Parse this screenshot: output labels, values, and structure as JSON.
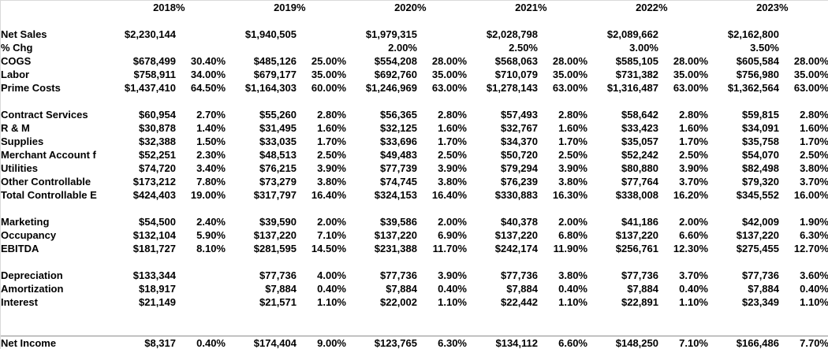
{
  "sheet": {
    "pct_header_symbol": "%",
    "years": [
      "2018",
      "2019",
      "2020",
      "2021",
      "2022",
      "2023"
    ],
    "rows": [
      {
        "spacer": true
      },
      {
        "label": "Net Sales",
        "cells": [
          [
            "$2,230,144",
            ""
          ],
          [
            "$1,940,505",
            ""
          ],
          [
            "$1,979,315",
            ""
          ],
          [
            "$2,028,798",
            ""
          ],
          [
            "$2,089,662",
            ""
          ],
          [
            "$2,162,800",
            ""
          ]
        ]
      },
      {
        "label": "% Chg",
        "cells": [
          [
            "",
            ""
          ],
          [
            "",
            ""
          ],
          [
            "2.00%",
            ""
          ],
          [
            "2.50%",
            ""
          ],
          [
            "3.00%",
            ""
          ],
          [
            "3.50%",
            ""
          ]
        ]
      },
      {
        "label": "COGS",
        "cells": [
          [
            "$678,499",
            "30.40%"
          ],
          [
            "$485,126",
            "25.00%"
          ],
          [
            "$554,208",
            "28.00%"
          ],
          [
            "$568,063",
            "28.00%"
          ],
          [
            "$585,105",
            "28.00%"
          ],
          [
            "$605,584",
            "28.00%"
          ]
        ]
      },
      {
        "label": "Labor",
        "cells": [
          [
            "$758,911",
            "34.00%"
          ],
          [
            "$679,177",
            "35.00%"
          ],
          [
            "$692,760",
            "35.00%"
          ],
          [
            "$710,079",
            "35.00%"
          ],
          [
            "$731,382",
            "35.00%"
          ],
          [
            "$756,980",
            "35.00%"
          ]
        ]
      },
      {
        "label": "Prime Costs",
        "cells": [
          [
            "$1,437,410",
            "64.50%"
          ],
          [
            "$1,164,303",
            "60.00%"
          ],
          [
            "$1,246,969",
            "63.00%"
          ],
          [
            "$1,278,143",
            "63.00%"
          ],
          [
            "$1,316,487",
            "63.00%"
          ],
          [
            "$1,362,564",
            "63.00%"
          ]
        ]
      },
      {
        "spacer": true
      },
      {
        "label": "Contract Services",
        "cells": [
          [
            "$60,954",
            "2.70%"
          ],
          [
            "$55,260",
            "2.80%"
          ],
          [
            "$56,365",
            "2.80%"
          ],
          [
            "$57,493",
            "2.80%"
          ],
          [
            "$58,642",
            "2.80%"
          ],
          [
            "$59,815",
            "2.80%"
          ]
        ]
      },
      {
        "label": "R & M",
        "cells": [
          [
            "$30,878",
            "1.40%"
          ],
          [
            "$31,495",
            "1.60%"
          ],
          [
            "$32,125",
            "1.60%"
          ],
          [
            "$32,767",
            "1.60%"
          ],
          [
            "$33,423",
            "1.60%"
          ],
          [
            "$34,091",
            "1.60%"
          ]
        ]
      },
      {
        "label": "Supplies",
        "cells": [
          [
            "$32,388",
            "1.50%"
          ],
          [
            "$33,035",
            "1.70%"
          ],
          [
            "$33,696",
            "1.70%"
          ],
          [
            "$34,370",
            "1.70%"
          ],
          [
            "$35,057",
            "1.70%"
          ],
          [
            "$35,758",
            "1.70%"
          ]
        ]
      },
      {
        "label": "Merchant Account f",
        "cells": [
          [
            "$52,251",
            "2.30%"
          ],
          [
            "$48,513",
            "2.50%"
          ],
          [
            "$49,483",
            "2.50%"
          ],
          [
            "$50,720",
            "2.50%"
          ],
          [
            "$52,242",
            "2.50%"
          ],
          [
            "$54,070",
            "2.50%"
          ]
        ]
      },
      {
        "label": "Utilities",
        "cells": [
          [
            "$74,720",
            "3.40%"
          ],
          [
            "$76,215",
            "3.90%"
          ],
          [
            "$77,739",
            "3.90%"
          ],
          [
            "$79,294",
            "3.90%"
          ],
          [
            "$80,880",
            "3.90%"
          ],
          [
            "$82,498",
            "3.80%"
          ]
        ]
      },
      {
        "label": "Other Controllable",
        "cells": [
          [
            "$173,212",
            "7.80%"
          ],
          [
            "$73,279",
            "3.80%"
          ],
          [
            "$74,745",
            "3.80%"
          ],
          [
            "$76,239",
            "3.80%"
          ],
          [
            "$77,764",
            "3.70%"
          ],
          [
            "$79,320",
            "3.70%"
          ]
        ]
      },
      {
        "label": "Total Controllable E",
        "cells": [
          [
            "$424,403",
            "19.00%"
          ],
          [
            "$317,797",
            "16.40%"
          ],
          [
            "$324,153",
            "16.40%"
          ],
          [
            "$330,883",
            "16.30%"
          ],
          [
            "$338,008",
            "16.20%"
          ],
          [
            "$345,552",
            "16.00%"
          ]
        ]
      },
      {
        "spacer": true
      },
      {
        "label": "Marketing",
        "cells": [
          [
            "$54,500",
            "2.40%"
          ],
          [
            "$39,590",
            "2.00%"
          ],
          [
            "$39,586",
            "2.00%"
          ],
          [
            "$40,378",
            "2.00%"
          ],
          [
            "$41,186",
            "2.00%"
          ],
          [
            "$42,009",
            "1.90%"
          ]
        ]
      },
      {
        "label": "Occupancy",
        "cells": [
          [
            "$132,104",
            "5.90%"
          ],
          [
            "$137,220",
            "7.10%"
          ],
          [
            "$137,220",
            "6.90%"
          ],
          [
            "$137,220",
            "6.80%"
          ],
          [
            "$137,220",
            "6.60%"
          ],
          [
            "$137,220",
            "6.30%"
          ]
        ]
      },
      {
        "label": "EBITDA",
        "cells": [
          [
            "$181,727",
            "8.10%"
          ],
          [
            "$281,595",
            "14.50%"
          ],
          [
            "$231,388",
            "11.70%"
          ],
          [
            "$242,174",
            "11.90%"
          ],
          [
            "$256,761",
            "12.30%"
          ],
          [
            "$275,455",
            "12.70%"
          ]
        ]
      },
      {
        "spacer": true
      },
      {
        "label": "Depreciation",
        "cells": [
          [
            "$133,344",
            ""
          ],
          [
            "$77,736",
            "4.00%"
          ],
          [
            "$77,736",
            "3.90%"
          ],
          [
            "$77,736",
            "3.80%"
          ],
          [
            "$77,736",
            "3.70%"
          ],
          [
            "$77,736",
            "3.60%"
          ]
        ]
      },
      {
        "label": "Amortization",
        "cells": [
          [
            "$18,917",
            ""
          ],
          [
            "$7,884",
            "0.40%"
          ],
          [
            "$7,884",
            "0.40%"
          ],
          [
            "$7,884",
            "0.40%"
          ],
          [
            "$7,884",
            "0.40%"
          ],
          [
            "$7,884",
            "0.40%"
          ]
        ]
      },
      {
        "label": "Interest",
        "cells": [
          [
            "$21,149",
            ""
          ],
          [
            "$21,571",
            "1.10%"
          ],
          [
            "$22,002",
            "1.10%"
          ],
          [
            "$22,442",
            "1.10%"
          ],
          [
            "$22,891",
            "1.10%"
          ],
          [
            "$23,349",
            "1.10%"
          ]
        ]
      },
      {
        "spacer": true
      },
      {
        "spacer": true
      },
      {
        "label": "Net Income",
        "total": true,
        "cells": [
          [
            "$8,317",
            "0.40%"
          ],
          [
            "$174,404",
            "9.00%"
          ],
          [
            "$123,765",
            "6.30%"
          ],
          [
            "$134,112",
            "6.60%"
          ],
          [
            "$148,250",
            "7.10%"
          ],
          [
            "$166,486",
            "7.70%"
          ]
        ]
      }
    ]
  }
}
